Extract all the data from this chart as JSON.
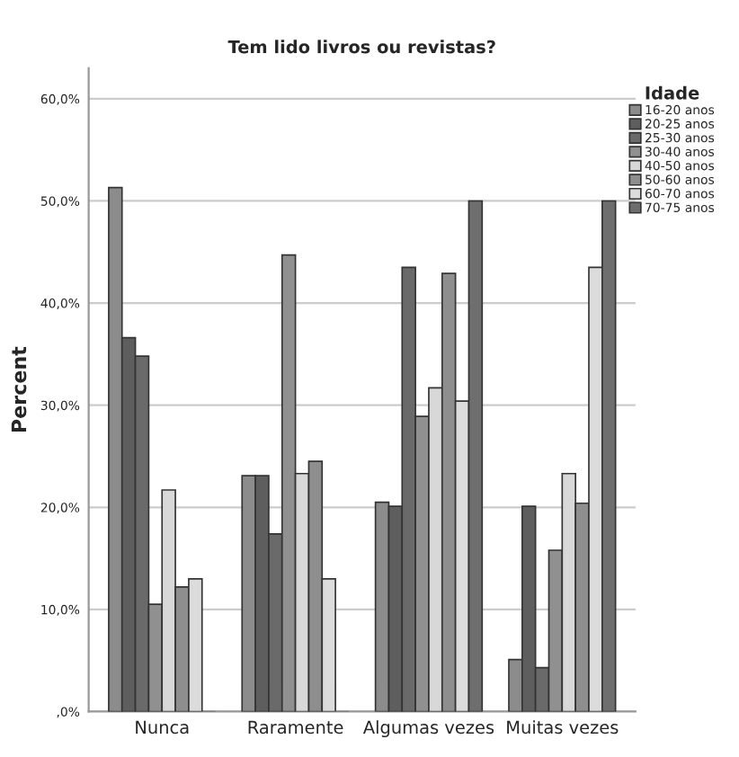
{
  "chart_data": {
    "type": "bar",
    "title": "Tem lido livros ou revistas?",
    "ylabel": "Percent",
    "legend_title": "Idade",
    "categories": [
      "Nunca",
      "Raramente",
      "Algumas vezes",
      "Muitas vezes"
    ],
    "series": [
      {
        "name": "16-20 anos",
        "color": "#8c8c8c",
        "values": [
          51.3,
          23.1,
          20.5,
          5.1
        ]
      },
      {
        "name": "20-25 anos",
        "color": "#5e5e5e",
        "values": [
          36.6,
          23.1,
          20.1,
          20.1
        ]
      },
      {
        "name": "25-30 anos",
        "color": "#6a6a6a",
        "values": [
          34.8,
          17.4,
          43.5,
          4.3
        ]
      },
      {
        "name": "30-40 anos",
        "color": "#909090",
        "values": [
          10.5,
          44.7,
          28.9,
          15.8
        ]
      },
      {
        "name": "40-50 anos",
        "color": "#d8d8d8",
        "values": [
          21.7,
          23.3,
          31.7,
          23.3
        ]
      },
      {
        "name": "50-60 anos",
        "color": "#8e8e8e",
        "values": [
          12.2,
          24.5,
          42.9,
          20.4
        ]
      },
      {
        "name": "60-70 anos",
        "color": "#dcdcdc",
        "values": [
          13.0,
          13.0,
          30.4,
          43.5
        ]
      },
      {
        "name": "70-75 anos",
        "color": "#6e6e6e",
        "values": [
          0,
          0,
          50.0,
          50.0
        ]
      }
    ],
    "ylim": [
      0,
      63
    ],
    "yticks": [
      {
        "value": 0,
        "label": ",0%"
      },
      {
        "value": 10,
        "label": "10,0%"
      },
      {
        "value": 20,
        "label": "20,0%"
      },
      {
        "value": 30,
        "label": "30,0%"
      },
      {
        "value": 40,
        "label": "40,0%"
      },
      {
        "value": 50,
        "label": "50,0%"
      },
      {
        "value": 60,
        "label": "60,0%"
      }
    ],
    "grid": "y",
    "legend": "top right"
  }
}
